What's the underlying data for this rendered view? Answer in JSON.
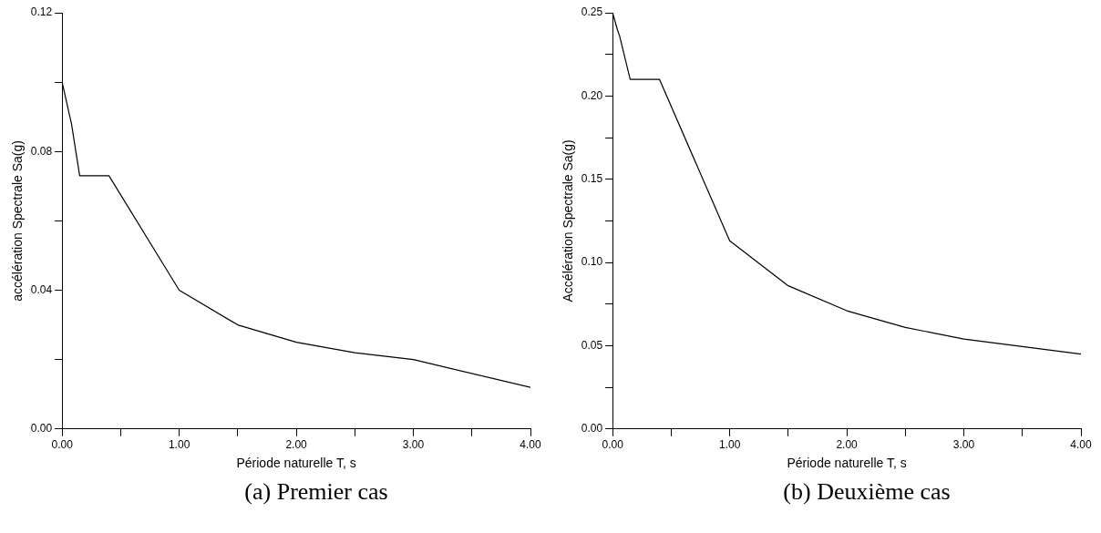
{
  "chart_data": [
    {
      "type": "line",
      "xlabel": "Période naturelle T, s",
      "ylabel": "accélération Spectrale Sa(g)",
      "annotations": [
        "(a) Premier cas"
      ],
      "series": [
        {
          "color": "#000000",
          "x": [
            0,
            0.08,
            0.15,
            0.4,
            1.0,
            1.5,
            2.0,
            2.5,
            3.0,
            4.0
          ],
          "values": [
            0.1,
            0.088,
            0.073,
            0.073,
            0.04,
            0.03,
            0.025,
            0.022,
            0.02,
            0.012
          ]
        }
      ],
      "xlim": [
        0,
        4
      ],
      "xticks": [
        {
          "value": 0,
          "label": "0.00"
        },
        {
          "value": 0.5,
          "label": null
        },
        {
          "value": 1,
          "label": "1.00"
        },
        {
          "value": 1.5,
          "label": null
        },
        {
          "value": 2,
          "label": "2.00"
        },
        {
          "value": 2.5,
          "label": null
        },
        {
          "value": 3,
          "label": "3.00"
        },
        {
          "value": 3.5,
          "label": null
        },
        {
          "value": 4,
          "label": "4.00"
        }
      ],
      "ylim": [
        0,
        0.12
      ],
      "yticks": [
        {
          "value": 0,
          "label": "0.00"
        },
        {
          "value": 0.02,
          "label": null
        },
        {
          "value": 0.04,
          "label": "0.04"
        },
        {
          "value": 0.06,
          "label": null
        },
        {
          "value": 0.08,
          "label": "0.08"
        },
        {
          "value": 0.1,
          "label": null
        },
        {
          "value": 0.12,
          "label": "0.12"
        }
      ],
      "grid": false,
      "legend": false,
      "marker": "none",
      "line_style": "solid"
    },
    {
      "type": "line",
      "xlabel": "Période naturelle T, s",
      "ylabel": "Accélération Spectrale Sa(g)",
      "annotations": [
        "(b) Deuxième cas"
      ],
      "series": [
        {
          "color": "#000000",
          "x": [
            0,
            0.04,
            0.06,
            0.15,
            0.4,
            1.0,
            1.5,
            2.0,
            2.5,
            3.0,
            4.0
          ],
          "values": [
            0.25,
            0.24,
            0.236,
            0.21,
            0.21,
            0.113,
            0.086,
            0.071,
            0.061,
            0.054,
            0.045
          ]
        }
      ],
      "xlim": [
        0,
        4
      ],
      "xticks": [
        {
          "value": 0,
          "label": "0.00"
        },
        {
          "value": 0.5,
          "label": null
        },
        {
          "value": 1,
          "label": "1.00"
        },
        {
          "value": 1.5,
          "label": null
        },
        {
          "value": 2,
          "label": "2.00"
        },
        {
          "value": 2.5,
          "label": null
        },
        {
          "value": 3,
          "label": "3.00"
        },
        {
          "value": 3.5,
          "label": null
        },
        {
          "value": 4,
          "label": "4.00"
        }
      ],
      "ylim": [
        0,
        0.25
      ],
      "yticks": [
        {
          "value": 0,
          "label": "0.00"
        },
        {
          "value": 0.025,
          "label": null
        },
        {
          "value": 0.05,
          "label": "0.05"
        },
        {
          "value": 0.075,
          "label": null
        },
        {
          "value": 0.1,
          "label": "0.10"
        },
        {
          "value": 0.125,
          "label": null
        },
        {
          "value": 0.15,
          "label": "0.15"
        },
        {
          "value": 0.175,
          "label": null
        },
        {
          "value": 0.2,
          "label": "0.20"
        },
        {
          "value": 0.225,
          "label": null
        },
        {
          "value": 0.25,
          "label": "0.25"
        }
      ],
      "grid": false,
      "legend": false,
      "marker": "none",
      "line_style": "solid"
    }
  ]
}
